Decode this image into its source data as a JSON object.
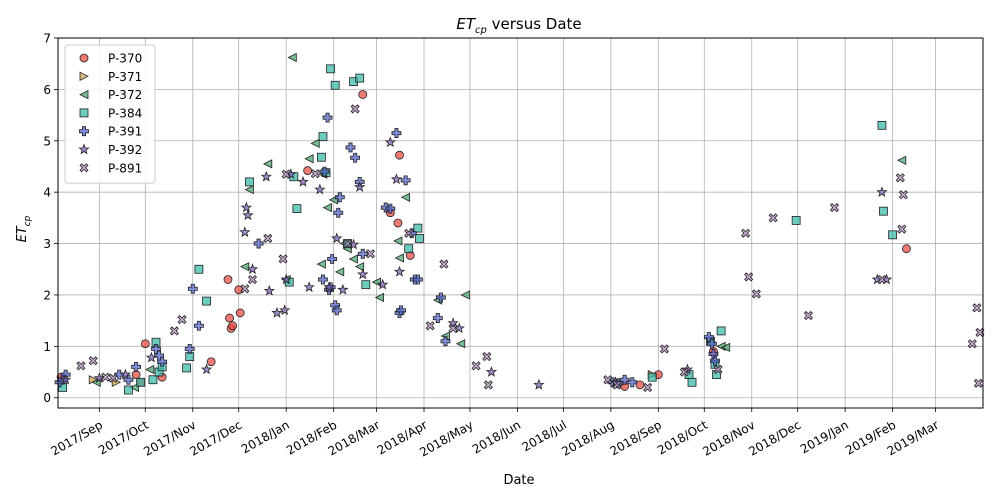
{
  "chart_data": {
    "type": "scatter",
    "title": "$ET_{cp}$ versus Date",
    "title_parts": {
      "main": "ET",
      "sub": "cp",
      "rest": " versus Date"
    },
    "xlabel": "Date",
    "ylabel": "$ET_{cp}$",
    "ylabel_parts": {
      "main": "ET",
      "sub": "cp"
    },
    "xlim": [
      "2017-08-05",
      "2019-04-01"
    ],
    "ylim": [
      -0.2,
      7.0
    ],
    "grid": true,
    "legend_position": "top-left",
    "x_ticks": [
      {
        "date": "2017-09-01",
        "label": "2017/Sep"
      },
      {
        "date": "2017-10-01",
        "label": "2017/Oct"
      },
      {
        "date": "2017-11-01",
        "label": "2017/Nov"
      },
      {
        "date": "2017-12-01",
        "label": "2017/Dec"
      },
      {
        "date": "2018-01-01",
        "label": "2018/Jan"
      },
      {
        "date": "2018-02-01",
        "label": "2018/Feb"
      },
      {
        "date": "2018-03-01",
        "label": "2018/Mar"
      },
      {
        "date": "2018-04-01",
        "label": "2018/Apr"
      },
      {
        "date": "2018-05-01",
        "label": "2018/May"
      },
      {
        "date": "2018-06-01",
        "label": "2018/Jun"
      },
      {
        "date": "2018-07-01",
        "label": "2018/Jul"
      },
      {
        "date": "2018-08-01",
        "label": "2018/Aug"
      },
      {
        "date": "2018-09-01",
        "label": "2018/Sep"
      },
      {
        "date": "2018-10-01",
        "label": "2018/Oct"
      },
      {
        "date": "2018-11-01",
        "label": "2018/Nov"
      },
      {
        "date": "2018-12-01",
        "label": "2018/Dec"
      },
      {
        "date": "2019-01-01",
        "label": "2019/Jan"
      },
      {
        "date": "2019-02-01",
        "label": "2019/Feb"
      },
      {
        "date": "2019-03-01",
        "label": "2019/Mar"
      }
    ],
    "y_ticks": [
      0,
      1,
      2,
      3,
      4,
      5,
      6,
      7
    ],
    "series": [
      {
        "name": "P-370",
        "marker": "circle",
        "color": "#e8473f",
        "points": [
          [
            "2017-08-07",
            0.4
          ],
          [
            "2017-09-25",
            0.45
          ],
          [
            "2017-09-28",
            0.3
          ],
          [
            "2017-10-01",
            1.05
          ],
          [
            "2017-10-12",
            0.4
          ],
          [
            "2017-11-13",
            0.7
          ],
          [
            "2017-11-24",
            2.3
          ],
          [
            "2017-11-25",
            1.55
          ],
          [
            "2017-11-26",
            1.35
          ],
          [
            "2017-11-27",
            1.4
          ],
          [
            "2017-12-01",
            2.1
          ],
          [
            "2017-12-02",
            1.65
          ],
          [
            "2018-01-15",
            4.42
          ],
          [
            "2018-02-20",
            5.9
          ],
          [
            "2018-03-10",
            3.6
          ],
          [
            "2018-03-15",
            3.4
          ],
          [
            "2018-03-16",
            4.72
          ],
          [
            "2018-03-23",
            2.77
          ],
          [
            "2018-08-10",
            0.22
          ],
          [
            "2018-08-20",
            0.25
          ],
          [
            "2018-09-01",
            0.45
          ],
          [
            "2018-10-07",
            0.9
          ],
          [
            "2019-02-10",
            2.9
          ]
        ]
      },
      {
        "name": "P-371",
        "marker": "triangle-right",
        "color": "#c8a24a",
        "points": [
          [
            "2017-08-28",
            0.35
          ],
          [
            "2017-09-12",
            0.3
          ],
          [
            "2018-08-28",
            0.45
          ]
        ]
      },
      {
        "name": "P-372",
        "marker": "triangle-left",
        "color": "#43a26a",
        "points": [
          [
            "2017-08-30",
            0.3
          ],
          [
            "2017-09-24",
            0.2
          ],
          [
            "2017-10-04",
            0.55
          ],
          [
            "2017-12-05",
            2.55
          ],
          [
            "2017-12-08",
            4.05
          ],
          [
            "2017-12-20",
            4.55
          ],
          [
            "2018-01-01",
            2.3
          ],
          [
            "2018-01-05",
            6.62
          ],
          [
            "2018-01-16",
            4.65
          ],
          [
            "2018-01-20",
            4.95
          ],
          [
            "2018-01-24",
            2.6
          ],
          [
            "2018-01-25",
            4.35
          ],
          [
            "2018-01-28",
            3.7
          ],
          [
            "2018-02-01",
            3.85
          ],
          [
            "2018-02-05",
            2.45
          ],
          [
            "2018-02-08",
            3.0
          ],
          [
            "2018-02-10",
            2.9
          ],
          [
            "2018-02-14",
            2.7
          ],
          [
            "2018-02-18",
            2.55
          ],
          [
            "2018-03-01",
            2.25
          ],
          [
            "2018-03-03",
            1.95
          ],
          [
            "2018-03-15",
            3.05
          ],
          [
            "2018-03-16",
            2.72
          ],
          [
            "2018-03-20",
            3.9
          ],
          [
            "2018-04-10",
            1.9
          ],
          [
            "2018-04-15",
            1.2
          ],
          [
            "2018-04-25",
            1.05
          ],
          [
            "2018-04-28",
            2.0
          ],
          [
            "2018-10-12",
            1.0
          ],
          [
            "2018-10-15",
            0.98
          ],
          [
            "2019-02-07",
            4.62
          ]
        ]
      },
      {
        "name": "P-384",
        "marker": "square",
        "color": "#35b7a6",
        "points": [
          [
            "2017-08-08",
            0.2
          ],
          [
            "2017-09-20",
            0.15
          ],
          [
            "2017-09-28",
            0.3
          ],
          [
            "2017-10-06",
            0.35
          ],
          [
            "2017-10-08",
            1.08
          ],
          [
            "2017-10-10",
            0.5
          ],
          [
            "2017-10-12",
            0.6
          ],
          [
            "2017-10-28",
            0.58
          ],
          [
            "2017-10-30",
            0.8
          ],
          [
            "2017-11-05",
            2.5
          ],
          [
            "2017-11-10",
            1.88
          ],
          [
            "2017-12-08",
            4.2
          ],
          [
            "2018-01-03",
            2.25
          ],
          [
            "2018-01-06",
            4.3
          ],
          [
            "2018-01-08",
            3.68
          ],
          [
            "2018-01-24",
            4.68
          ],
          [
            "2018-01-25",
            5.08
          ],
          [
            "2018-01-27",
            4.38
          ],
          [
            "2018-01-30",
            6.4
          ],
          [
            "2018-02-02",
            6.08
          ],
          [
            "2018-02-10",
            3.0
          ],
          [
            "2018-02-14",
            6.15
          ],
          [
            "2018-02-18",
            6.22
          ],
          [
            "2018-02-22",
            2.2
          ],
          [
            "2018-03-22",
            2.9
          ],
          [
            "2018-03-28",
            3.3
          ],
          [
            "2018-03-29",
            3.1
          ],
          [
            "2018-08-28",
            0.4
          ],
          [
            "2018-09-21",
            0.45
          ],
          [
            "2018-09-23",
            0.3
          ],
          [
            "2018-10-05",
            1.1
          ],
          [
            "2018-10-08",
            0.65
          ],
          [
            "2018-10-09",
            0.45
          ],
          [
            "2018-10-12",
            1.3
          ],
          [
            "2018-11-30",
            3.45
          ],
          [
            "2019-01-25",
            5.3
          ],
          [
            "2019-01-26",
            3.63
          ],
          [
            "2019-02-01",
            3.17
          ]
        ]
      },
      {
        "name": "P-391",
        "marker": "plus",
        "color": "#4e5fc8",
        "points": [
          [
            "2017-08-06",
            0.3
          ],
          [
            "2017-08-08",
            0.35
          ],
          [
            "2017-08-10",
            0.45
          ],
          [
            "2017-09-14",
            0.45
          ],
          [
            "2017-09-20",
            0.35
          ],
          [
            "2017-09-25",
            0.6
          ],
          [
            "2017-10-08",
            0.95
          ],
          [
            "2017-10-10",
            0.82
          ],
          [
            "2017-10-12",
            0.7
          ],
          [
            "2017-10-30",
            0.95
          ],
          [
            "2017-11-01",
            2.12
          ],
          [
            "2017-11-05",
            1.4
          ],
          [
            "2017-12-14",
            3.0
          ],
          [
            "2018-01-25",
            2.3
          ],
          [
            "2018-01-26",
            4.4
          ],
          [
            "2018-01-28",
            5.45
          ],
          [
            "2018-01-29",
            2.1
          ],
          [
            "2018-01-30",
            2.15
          ],
          [
            "2018-01-31",
            2.7
          ],
          [
            "2018-02-02",
            1.8
          ],
          [
            "2018-02-03",
            1.7
          ],
          [
            "2018-02-04",
            3.6
          ],
          [
            "2018-02-05",
            3.9
          ],
          [
            "2018-02-12",
            4.87
          ],
          [
            "2018-02-15",
            4.67
          ],
          [
            "2018-02-18",
            4.2
          ],
          [
            "2018-02-20",
            2.8
          ],
          [
            "2018-03-07",
            3.7
          ],
          [
            "2018-03-10",
            3.68
          ],
          [
            "2018-03-14",
            5.15
          ],
          [
            "2018-03-16",
            1.65
          ],
          [
            "2018-03-17",
            1.7
          ],
          [
            "2018-03-20",
            4.23
          ],
          [
            "2018-03-24",
            3.2
          ],
          [
            "2018-03-26",
            2.3
          ],
          [
            "2018-03-28",
            2.3
          ],
          [
            "2018-04-10",
            1.55
          ],
          [
            "2018-04-12",
            1.95
          ],
          [
            "2018-04-15",
            1.1
          ],
          [
            "2018-08-02",
            0.3
          ],
          [
            "2018-08-06",
            0.28
          ],
          [
            "2018-08-10",
            0.35
          ],
          [
            "2018-08-15",
            0.3
          ],
          [
            "2018-10-04",
            1.18
          ],
          [
            "2018-10-06",
            1.05
          ],
          [
            "2018-10-07",
            0.85
          ],
          [
            "2018-10-08",
            0.72
          ]
        ]
      },
      {
        "name": "P-392",
        "marker": "star",
        "color": "#7f5bb5",
        "points": [
          [
            "2017-08-10",
            0.35
          ],
          [
            "2017-09-01",
            0.38
          ],
          [
            "2017-09-18",
            0.45
          ],
          [
            "2017-10-05",
            0.78
          ],
          [
            "2017-11-10",
            0.55
          ],
          [
            "2017-12-05",
            3.22
          ],
          [
            "2017-12-06",
            3.7
          ],
          [
            "2017-12-07",
            3.55
          ],
          [
            "2017-12-10",
            2.5
          ],
          [
            "2017-12-19",
            4.3
          ],
          [
            "2017-12-21",
            2.08
          ],
          [
            "2017-12-26",
            1.65
          ],
          [
            "2017-12-31",
            1.7
          ],
          [
            "2018-01-01",
            2.3
          ],
          [
            "2018-01-04",
            4.35
          ],
          [
            "2018-01-12",
            4.2
          ],
          [
            "2018-01-16",
            2.15
          ],
          [
            "2018-01-23",
            4.05
          ],
          [
            "2018-01-29",
            2.15
          ],
          [
            "2018-02-03",
            3.1
          ],
          [
            "2018-02-07",
            2.1
          ],
          [
            "2018-02-14",
            2.98
          ],
          [
            "2018-02-18",
            4.1
          ],
          [
            "2018-02-20",
            2.4
          ],
          [
            "2018-03-05",
            2.2
          ],
          [
            "2018-03-10",
            4.97
          ],
          [
            "2018-03-14",
            4.25
          ],
          [
            "2018-03-16",
            2.45
          ],
          [
            "2018-04-20",
            1.45
          ],
          [
            "2018-04-24",
            1.35
          ],
          [
            "2018-05-15",
            0.5
          ],
          [
            "2018-06-15",
            0.25
          ],
          [
            "2018-08-04",
            0.3
          ],
          [
            "2018-09-20",
            0.55
          ],
          [
            "2019-01-22",
            2.3
          ],
          [
            "2019-01-25",
            4.0
          ],
          [
            "2019-01-28",
            2.3
          ]
        ]
      },
      {
        "name": "P-891",
        "marker": "x",
        "color": "#b790c2",
        "points": [
          [
            "2017-08-20",
            0.62
          ],
          [
            "2017-08-28",
            0.72
          ],
          [
            "2017-09-05",
            0.4
          ],
          [
            "2017-09-10",
            0.38
          ],
          [
            "2017-10-20",
            1.3
          ],
          [
            "2017-10-25",
            1.52
          ],
          [
            "2017-12-05",
            2.12
          ],
          [
            "2017-12-10",
            2.3
          ],
          [
            "2017-12-20",
            3.1
          ],
          [
            "2017-12-30",
            2.7
          ],
          [
            "2018-01-01",
            4.35
          ],
          [
            "2018-01-20",
            4.36
          ],
          [
            "2018-02-10",
            3.0
          ],
          [
            "2018-02-15",
            5.62
          ],
          [
            "2018-02-25",
            2.8
          ],
          [
            "2018-03-22",
            3.2
          ],
          [
            "2018-04-05",
            1.4
          ],
          [
            "2018-04-14",
            2.6
          ],
          [
            "2018-04-20",
            1.35
          ],
          [
            "2018-05-05",
            0.62
          ],
          [
            "2018-05-12",
            0.8
          ],
          [
            "2018-05-13",
            0.25
          ],
          [
            "2018-07-30",
            0.35
          ],
          [
            "2018-08-05",
            0.25
          ],
          [
            "2018-08-25",
            0.2
          ],
          [
            "2018-09-05",
            0.95
          ],
          [
            "2018-09-18",
            0.5
          ],
          [
            "2018-10-10",
            0.55
          ],
          [
            "2018-10-28",
            3.2
          ],
          [
            "2018-10-30",
            2.35
          ],
          [
            "2018-11-04",
            2.02
          ],
          [
            "2018-11-15",
            3.5
          ],
          [
            "2018-12-08",
            1.6
          ],
          [
            "2018-12-25",
            3.7
          ],
          [
            "2019-01-25",
            2.3
          ],
          [
            "2019-02-06",
            4.28
          ],
          [
            "2019-02-07",
            3.28
          ],
          [
            "2019-02-08",
            3.95
          ],
          [
            "2019-03-25",
            1.05
          ],
          [
            "2019-03-28",
            1.75
          ],
          [
            "2019-03-29",
            0.28
          ],
          [
            "2019-03-30",
            1.27
          ]
        ]
      }
    ]
  }
}
